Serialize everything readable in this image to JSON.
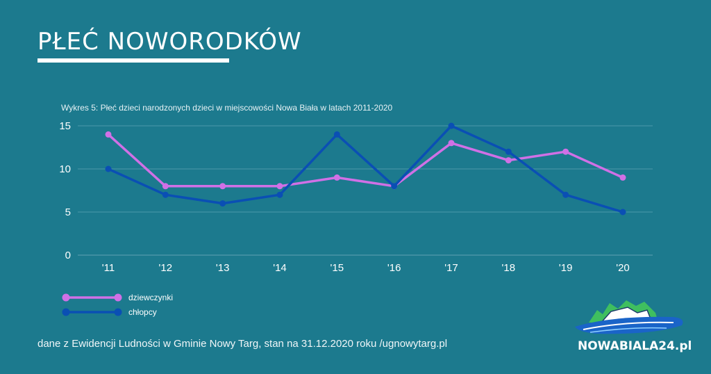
{
  "page": {
    "title": "PŁEĆ NOWORODKÓW",
    "footer": "dane z Ewidencji Ludności w Gminie Nowy Targ, stan na 31.12.2020 roku /ugnowytarg.pl",
    "logo_text": "NOWABIALA24.pl"
  },
  "chart_data": {
    "type": "line",
    "title": "Wykres 5: Płeć dzieci narodzonych dzieci w miejscowości Nowa Biała w latach 2011-2020",
    "xlabel": "",
    "ylabel": "",
    "categories": [
      "'11",
      "'12",
      "'13",
      "'14",
      "'15",
      "'16",
      "'17",
      "'18",
      "'19",
      "'20"
    ],
    "ylim": [
      0,
      15
    ],
    "yticks": [
      0,
      5,
      10,
      15
    ],
    "grid": true,
    "legend": "bottom-left",
    "series": [
      {
        "name": "dziewczynki",
        "color": "#d070e6",
        "values": [
          14,
          8,
          8,
          8,
          9,
          8,
          13,
          11,
          12,
          9
        ]
      },
      {
        "name": "chłopcy",
        "color": "#0a4fb4",
        "values": [
          10,
          7,
          6,
          7,
          14,
          8,
          15,
          12,
          7,
          5
        ]
      }
    ]
  }
}
